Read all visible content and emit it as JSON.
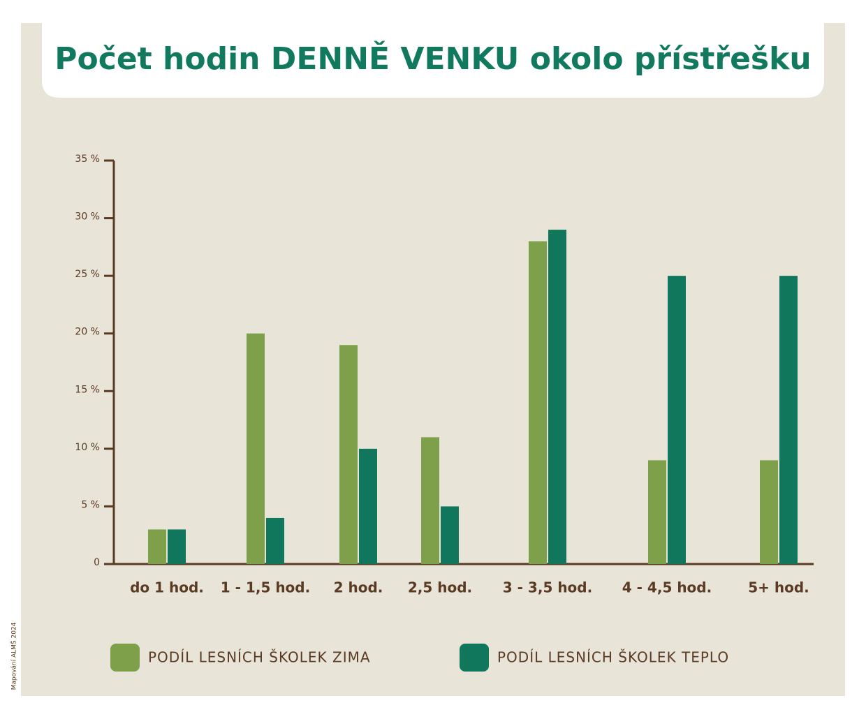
{
  "chart_data": {
    "type": "bar",
    "title": "Počet hodin DENNĚ VENKU okolo přístřešku",
    "categories": [
      "do 1 hod.",
      "1 - 1,5 hod.",
      "2 hod.",
      "2,5 hod.",
      "3 - 3,5 hod.",
      "4 - 4,5 hod.",
      "5+ hod."
    ],
    "series": [
      {
        "name": "PODÍL LESNÍCH ŠKOLEK ZIMA",
        "color": "#7fa04a",
        "values": [
          3,
          20,
          19,
          11,
          28,
          9,
          9
        ]
      },
      {
        "name": "PODÍL LESNÍCH ŠKOLEK TEPLO",
        "color": "#10765c",
        "values": [
          3,
          4,
          10,
          5,
          29,
          25,
          25
        ]
      }
    ],
    "ylim": [
      0,
      35
    ],
    "yticks": [
      0,
      {
        "value": 5,
        "label": "5 %"
      },
      {
        "value": 10,
        "label": "10 %"
      },
      {
        "value": 15,
        "label": "15 %"
      },
      {
        "value": 20,
        "label": "20 %"
      },
      {
        "value": 25,
        "label": "25 %"
      },
      {
        "value": 30,
        "label": "30 %"
      },
      {
        "value": 35,
        "label": "35 %"
      }
    ],
    "legend": "bottom",
    "credit": "Mapování ALMŠ 2024"
  }
}
